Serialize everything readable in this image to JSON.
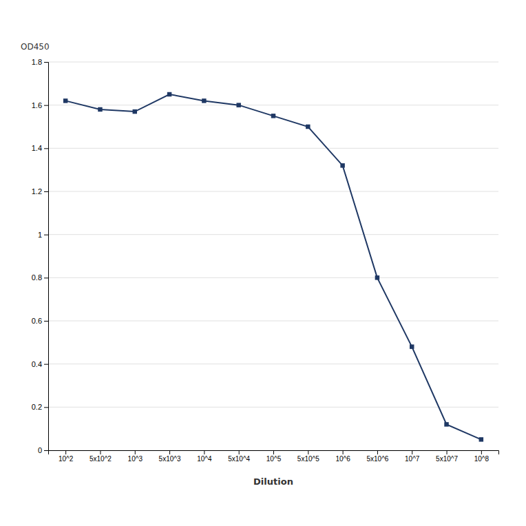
{
  "chart_data": {
    "type": "line",
    "xlabel": "Dilution",
    "ylabel": "OD450",
    "categories": [
      "10^2",
      "5x10^2",
      "10^3",
      "5x10^3",
      "10^4",
      "5x10^4",
      "10^5",
      "5x10^5",
      "10^6",
      "5x10^6",
      "10^7",
      "5x10^7",
      "10^8"
    ],
    "values": [
      1.62,
      1.58,
      1.57,
      1.65,
      1.62,
      1.6,
      1.55,
      1.5,
      1.32,
      0.8,
      0.48,
      0.12,
      0.05
    ],
    "color": "#1F3864",
    "marker": "square",
    "ylim": [
      0,
      1.8
    ],
    "yticks": [
      0,
      0.2,
      0.4,
      0.6,
      0.8,
      1,
      1.2,
      1.4,
      1.6,
      1.8
    ],
    "grid": true
  }
}
